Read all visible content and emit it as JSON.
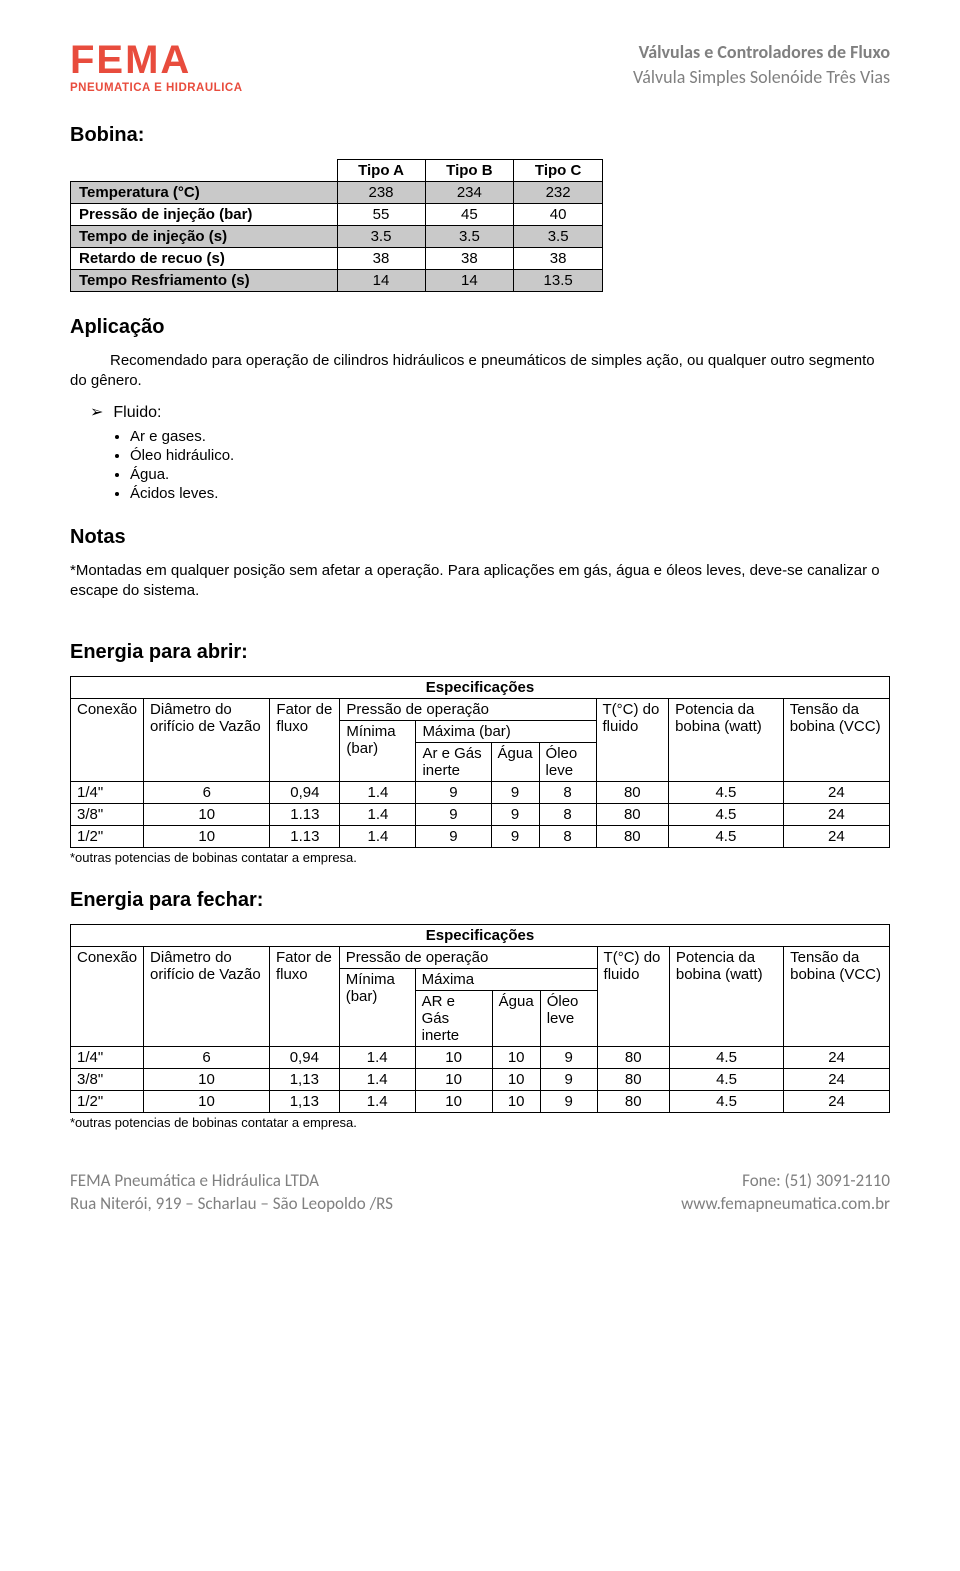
{
  "logo": {
    "main": "FEMA",
    "sub": "PNEUMATICA E HIDRAULICA",
    "color": "#e84c3d",
    "sub_color": "#e84c3d"
  },
  "header_right": {
    "line1": "Válvulas e Controladores de Fluxo",
    "line2": "Válvula Simples Solenóide Três Vias"
  },
  "bobina": {
    "title": "Bobina:",
    "cols": [
      "Tipo A",
      "Tipo B",
      "Tipo C"
    ],
    "rows": [
      {
        "label": "Temperatura (°C)",
        "vals": [
          "238",
          "234",
          "232"
        ],
        "shade": true
      },
      {
        "label": "Pressão de injeção (bar)",
        "vals": [
          "55",
          "45",
          "40"
        ],
        "shade": false
      },
      {
        "label": "Tempo de injeção (s)",
        "vals": [
          "3.5",
          "3.5",
          "3.5"
        ],
        "shade": true
      },
      {
        "label": "Retardo de recuo (s)",
        "vals": [
          "38",
          "38",
          "38"
        ],
        "shade": false
      },
      {
        "label": "Tempo Resfriamento (s)",
        "vals": [
          "14",
          "14",
          "13.5"
        ],
        "shade": true
      }
    ]
  },
  "aplicacao": {
    "title": "Aplicação",
    "text": "Recomendado para operação de cilindros hidráulicos e pneumáticos de simples ação, ou qualquer outro segmento do gênero.",
    "fluido_label": "Fluido:",
    "fluido_items": [
      "Ar e gases.",
      "Óleo hidráulico.",
      "Água.",
      "Ácidos leves."
    ]
  },
  "notas": {
    "title": "Notas",
    "text": "*Montadas em qualquer posição sem afetar a operação. Para aplicações em gás, água e óleos leves, deve-se canalizar o escape do sistema."
  },
  "energia_abrir": {
    "title": "Energia para abrir:",
    "spec_label": "Especificações",
    "headers": {
      "conexao": "Conexão",
      "diam": "Diâmetro do orifício de Vazão",
      "fator": "Fator de fluxo",
      "pressao": "Pressão de operação",
      "min": "Mínima (bar)",
      "max": "Máxima (bar)",
      "ar": "Ar e Gás inerte",
      "agua": "Água",
      "oleo": "Óleo leve",
      "temp": "T(°C) do fluido",
      "pot": "Potencia da bobina (watt)",
      "tensao": "Tensão da bobina (VCC)"
    },
    "rows": [
      [
        "1/4\"",
        "6",
        "0,94",
        "1.4",
        "9",
        "9",
        "8",
        "80",
        "4.5",
        "24"
      ],
      [
        "3/8\"",
        "10",
        "1.13",
        "1.4",
        "9",
        "9",
        "8",
        "80",
        "4.5",
        "24"
      ],
      [
        "1/2\"",
        "10",
        "1.13",
        "1.4",
        "9",
        "9",
        "8",
        "80",
        "4.5",
        "24"
      ]
    ],
    "footnote": "*outras potencias de bobinas contatar a empresa."
  },
  "energia_fechar": {
    "title": "Energia para fechar:",
    "spec_label": "Especificações",
    "headers": {
      "conexao": "Conexão",
      "diam": "Diâmetro do orifício de Vazão",
      "fator": "Fator de fluxo",
      "pressao": "Pressão de operação",
      "min": "Mínima (bar)",
      "max": "Máxima",
      "ar": "AR e Gás inerte",
      "agua": "Água",
      "oleo": "Óleo leve",
      "temp": "T(°C) do fluido",
      "pot": "Potencia da bobina (watt)",
      "tensao": "Tensão da bobina (VCC)"
    },
    "rows": [
      [
        "1/4\"",
        "6",
        "0,94",
        "1.4",
        "10",
        "10",
        "9",
        "80",
        "4.5",
        "24"
      ],
      [
        "3/8\"",
        "10",
        "1,13",
        "1.4",
        "10",
        "10",
        "9",
        "80",
        "4.5",
        "24"
      ],
      [
        "1/2\"",
        "10",
        "1,13",
        "1.4",
        "10",
        "10",
        "9",
        "80",
        "4.5",
        "24"
      ]
    ],
    "footnote": "*outras potencias de bobinas contatar a empresa."
  },
  "footer": {
    "left1": "FEMA Pneumática e Hidráulica LTDA",
    "left2": "Rua Niterói, 919 – Scharlau – São Leopoldo /RS",
    "right1": "Fone: (51) 3091-2110",
    "right2": "www.femapneumatica.com.br"
  }
}
